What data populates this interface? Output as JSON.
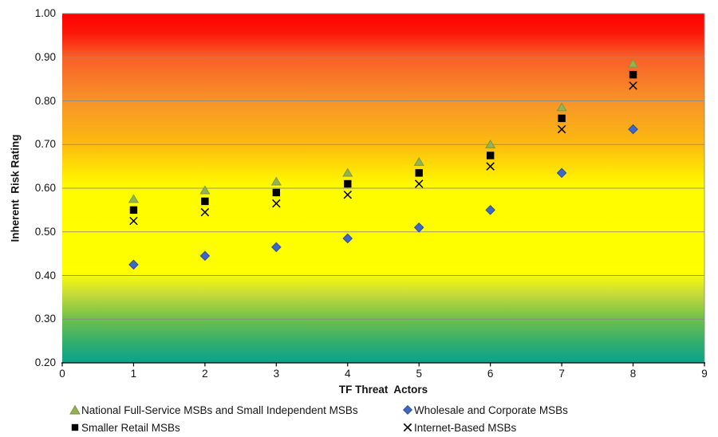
{
  "chart_data": {
    "type": "scatter",
    "title": "",
    "xlabel": "TF Threat  Actors",
    "ylabel": "Inherent  Risk Rating",
    "xlim": [
      0,
      9
    ],
    "ylim": [
      0.2,
      1.0
    ],
    "x_ticks": [
      "0",
      "1",
      "2",
      "3",
      "4",
      "5",
      "6",
      "7",
      "8",
      "9"
    ],
    "y_ticks": [
      "1.00",
      "0.90",
      "0.80",
      "0.70",
      "0.60",
      "0.50",
      "0.40",
      "0.30",
      "0.20"
    ],
    "grid": "horizontal gridlines every 0.10, no vertical gridlines",
    "legend_position": "bottom, two columns",
    "x": [
      1,
      2,
      3,
      4,
      5,
      6,
      7,
      8
    ],
    "series": [
      {
        "name": "National Full-Service MSBs and Small Independent MSBs",
        "marker": "triangle",
        "color": "#93B253",
        "stroke": "#7B9A43",
        "values": [
          0.575,
          0.595,
          0.615,
          0.635,
          0.66,
          0.7,
          0.785,
          0.885
        ]
      },
      {
        "name": "Wholesale and Corporate MSBs",
        "marker": "diamond",
        "color": "#3E68C6",
        "stroke": "#2C4E9B",
        "values": [
          0.425,
          0.445,
          0.465,
          0.485,
          0.51,
          0.55,
          0.635,
          0.735
        ]
      },
      {
        "name": "Smaller Retail MSBs",
        "marker": "square",
        "color": "#000000",
        "stroke": "#000000",
        "values": [
          0.55,
          0.57,
          0.59,
          0.61,
          0.635,
          0.675,
          0.76,
          0.86
        ]
      },
      {
        "name": "Internet-Based MSBs",
        "marker": "x",
        "color": "#000000",
        "stroke": "#000000",
        "values": [
          0.525,
          0.545,
          0.565,
          0.585,
          0.61,
          0.65,
          0.735,
          0.835
        ]
      }
    ],
    "legend_columns": {
      "col1": [
        0,
        2
      ],
      "col2": [
        1,
        3
      ]
    },
    "colors": {
      "gridline": "#8B8B8B",
      "axis_line": "#000000",
      "plot_right_border": "#8B8B8B"
    },
    "background_gradient": {
      "direction": "top-to-bottom",
      "stops": [
        {
          "pos": 0.0,
          "color": "#ff0000"
        },
        {
          "pos": 0.055,
          "color": "#fc1708"
        },
        {
          "pos": 0.125,
          "color": "#f85f27"
        },
        {
          "pos": 0.25,
          "color": "#f8932a"
        },
        {
          "pos": 0.375,
          "color": "#fcbb0e"
        },
        {
          "pos": 0.47,
          "color": "#feef00"
        },
        {
          "pos": 0.5,
          "color": "#fffb00"
        },
        {
          "pos": 0.74,
          "color": "#ffff00"
        },
        {
          "pos": 0.8,
          "color": "#cadd38"
        },
        {
          "pos": 0.875,
          "color": "#6ebf4b"
        },
        {
          "pos": 0.95,
          "color": "#2bac72"
        },
        {
          "pos": 1.0,
          "color": "#0ba28b"
        }
      ]
    }
  }
}
